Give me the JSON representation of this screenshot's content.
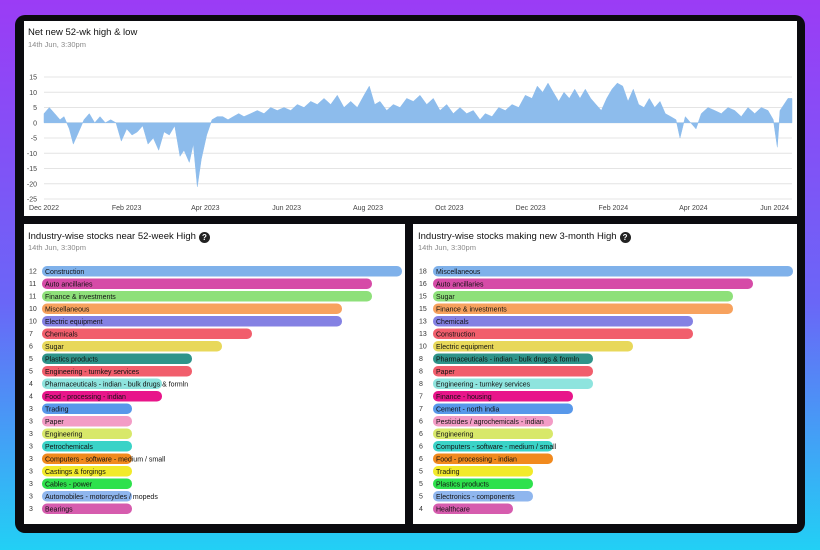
{
  "top": {
    "title": "Net new 52-wk high & low",
    "subtitle": "14th Jun, 3:30pm"
  },
  "left": {
    "title": "Industry-wise stocks near 52-week High",
    "subtitle": "14th Jun, 3:30pm"
  },
  "right": {
    "title": "Industry-wise stocks making new 3-month High",
    "subtitle": "14th Jun, 3:30pm"
  },
  "colors": {
    "area": "#8dbcec",
    "grid": "#e4e4e4"
  },
  "chart_data": [
    {
      "type": "area",
      "title": "Net new 52-wk high & low",
      "ylim": [
        -25,
        15
      ],
      "yticks": [
        15,
        10,
        5,
        0,
        -5,
        -10,
        -15,
        -20,
        -25
      ],
      "xticks": [
        "Dec 2022",
        "Feb 2023",
        "Apr 2023",
        "Jun 2023",
        "Aug 2023",
        "Oct 2023",
        "Dec 2023",
        "Feb 2024",
        "Apr 2024",
        "Jun 2024"
      ],
      "grid": true,
      "x_start": "2022-12-01",
      "x_end": "2024-06-14",
      "points": [
        [
          "2022-12-01",
          3
        ],
        [
          "2022-12-05",
          5
        ],
        [
          "2022-12-09",
          3
        ],
        [
          "2022-12-13",
          1
        ],
        [
          "2022-12-16",
          2
        ],
        [
          "2022-12-20",
          -2
        ],
        [
          "2022-12-23",
          -7
        ],
        [
          "2022-12-27",
          -3
        ],
        [
          "2022-12-31",
          1
        ],
        [
          "2023-01-04",
          3
        ],
        [
          "2023-01-08",
          0
        ],
        [
          "2023-01-12",
          2
        ],
        [
          "2023-01-16",
          0
        ],
        [
          "2023-01-20",
          1
        ],
        [
          "2023-01-24",
          0
        ],
        [
          "2023-01-28",
          -6
        ],
        [
          "2023-02-01",
          -2
        ],
        [
          "2023-02-05",
          -4
        ],
        [
          "2023-02-09",
          -3
        ],
        [
          "2023-02-13",
          -1
        ],
        [
          "2023-02-17",
          -7
        ],
        [
          "2023-02-21",
          -5
        ],
        [
          "2023-02-25",
          -9
        ],
        [
          "2023-03-01",
          -3
        ],
        [
          "2023-03-05",
          -4
        ],
        [
          "2023-03-09",
          -1
        ],
        [
          "2023-03-13",
          -11
        ],
        [
          "2023-03-16",
          -9
        ],
        [
          "2023-03-20",
          -13
        ],
        [
          "2023-03-23",
          -7
        ],
        [
          "2023-03-26",
          -21
        ],
        [
          "2023-03-29",
          -12
        ],
        [
          "2023-04-02",
          -4
        ],
        [
          "2023-04-06",
          1
        ],
        [
          "2023-04-10",
          2
        ],
        [
          "2023-04-14",
          2
        ],
        [
          "2023-04-18",
          1
        ],
        [
          "2023-04-22",
          2
        ],
        [
          "2023-04-26",
          3
        ],
        [
          "2023-04-30",
          2
        ],
        [
          "2023-05-05",
          3
        ],
        [
          "2023-05-10",
          4
        ],
        [
          "2023-05-15",
          3
        ],
        [
          "2023-05-20",
          5
        ],
        [
          "2023-05-25",
          4
        ],
        [
          "2023-05-30",
          5
        ],
        [
          "2023-06-04",
          4
        ],
        [
          "2023-06-09",
          6
        ],
        [
          "2023-06-14",
          5
        ],
        [
          "2023-06-19",
          7
        ],
        [
          "2023-06-24",
          6
        ],
        [
          "2023-06-29",
          8
        ],
        [
          "2023-07-04",
          6
        ],
        [
          "2023-07-09",
          9
        ],
        [
          "2023-07-14",
          5
        ],
        [
          "2023-07-19",
          7
        ],
        [
          "2023-07-24",
          5
        ],
        [
          "2023-07-29",
          9
        ],
        [
          "2023-08-02",
          12
        ],
        [
          "2023-08-06",
          6
        ],
        [
          "2023-08-10",
          7
        ],
        [
          "2023-08-15",
          4
        ],
        [
          "2023-08-20",
          6
        ],
        [
          "2023-08-25",
          5
        ],
        [
          "2023-08-30",
          8
        ],
        [
          "2023-09-04",
          7
        ],
        [
          "2023-09-09",
          9
        ],
        [
          "2023-09-14",
          6
        ],
        [
          "2023-09-19",
          8
        ],
        [
          "2023-09-24",
          4
        ],
        [
          "2023-09-29",
          6
        ],
        [
          "2023-10-04",
          3
        ],
        [
          "2023-10-09",
          5
        ],
        [
          "2023-10-14",
          3
        ],
        [
          "2023-10-19",
          4
        ],
        [
          "2023-10-24",
          1
        ],
        [
          "2023-10-28",
          3
        ],
        [
          "2023-11-02",
          2
        ],
        [
          "2023-11-07",
          5
        ],
        [
          "2023-11-12",
          4
        ],
        [
          "2023-11-17",
          6
        ],
        [
          "2023-11-22",
          5
        ],
        [
          "2023-11-27",
          9
        ],
        [
          "2023-12-02",
          8
        ],
        [
          "2023-12-06",
          12
        ],
        [
          "2023-12-10",
          10
        ],
        [
          "2023-12-14",
          13
        ],
        [
          "2023-12-18",
          10
        ],
        [
          "2023-12-22",
          7
        ],
        [
          "2023-12-26",
          10
        ],
        [
          "2023-12-30",
          8
        ],
        [
          "2024-01-03",
          11
        ],
        [
          "2024-01-07",
          8
        ],
        [
          "2024-01-11",
          11
        ],
        [
          "2024-01-15",
          8
        ],
        [
          "2024-01-19",
          6
        ],
        [
          "2024-01-23",
          4
        ],
        [
          "2024-01-27",
          8
        ],
        [
          "2024-01-31",
          11
        ],
        [
          "2024-02-04",
          13
        ],
        [
          "2024-02-08",
          12
        ],
        [
          "2024-02-12",
          7
        ],
        [
          "2024-02-16",
          11
        ],
        [
          "2024-02-20",
          6
        ],
        [
          "2024-02-24",
          5
        ],
        [
          "2024-02-28",
          8
        ],
        [
          "2024-03-03",
          5
        ],
        [
          "2024-03-07",
          7
        ],
        [
          "2024-03-11",
          3
        ],
        [
          "2024-03-15",
          2
        ],
        [
          "2024-03-19",
          1
        ],
        [
          "2024-03-22",
          -5
        ],
        [
          "2024-03-26",
          2
        ],
        [
          "2024-03-30",
          0
        ],
        [
          "2024-04-03",
          -2
        ],
        [
          "2024-04-07",
          3
        ],
        [
          "2024-04-12",
          5
        ],
        [
          "2024-04-17",
          4
        ],
        [
          "2024-04-22",
          3
        ],
        [
          "2024-04-27",
          5
        ],
        [
          "2024-05-02",
          4
        ],
        [
          "2024-05-07",
          2
        ],
        [
          "2024-05-12",
          5
        ],
        [
          "2024-05-17",
          3
        ],
        [
          "2024-05-22",
          5
        ],
        [
          "2024-05-27",
          4
        ],
        [
          "2024-05-31",
          1
        ],
        [
          "2024-06-03",
          -8
        ],
        [
          "2024-06-05",
          4
        ],
        [
          "2024-06-08",
          6
        ],
        [
          "2024-06-11",
          8
        ],
        [
          "2024-06-14",
          8
        ]
      ]
    },
    {
      "type": "bar",
      "orientation": "horizontal",
      "title": "Industry-wise stocks near 52-week High",
      "xlim": [
        0,
        12
      ],
      "bars": [
        {
          "label": "Construction",
          "value": 12,
          "color": "#7fb1ea"
        },
        {
          "label": "Auto ancillaries",
          "value": 11,
          "color": "#d64ba7"
        },
        {
          "label": "Finance & investments",
          "value": 11,
          "color": "#8ee07a"
        },
        {
          "label": "Miscellaneous",
          "value": 10,
          "color": "#f7a25e"
        },
        {
          "label": "Electric equipment",
          "value": 10,
          "color": "#8481e3"
        },
        {
          "label": "Chemicals",
          "value": 7,
          "color": "#f15e6c"
        },
        {
          "label": "Sugar",
          "value": 6,
          "color": "#e8d85a"
        },
        {
          "label": "Plastics products",
          "value": 5,
          "color": "#2f948a"
        },
        {
          "label": "Engineering - turnkey services",
          "value": 5,
          "color": "#f15e6c"
        },
        {
          "label": "Pharmaceuticals - indian - bulk drugs & formln",
          "value": 4,
          "color": "#8ee4de"
        },
        {
          "label": "Food - processing - indian",
          "value": 4,
          "color": "#e8158a"
        },
        {
          "label": "Trading",
          "value": 3,
          "color": "#5898ea"
        },
        {
          "label": "Paper",
          "value": 3,
          "color": "#f39cc6"
        },
        {
          "label": "Engineering",
          "value": 3,
          "color": "#d8e86a"
        },
        {
          "label": "Petrochemicals",
          "value": 3,
          "color": "#3ad3c7"
        },
        {
          "label": "Computers - software - medium / small",
          "value": 3,
          "color": "#f18a1e"
        },
        {
          "label": "Castings & forgings",
          "value": 3,
          "color": "#f2ea2a"
        },
        {
          "label": "Cables - power",
          "value": 3,
          "color": "#2ee14d"
        },
        {
          "label": "Automobiles - motorcycles / mopeds",
          "value": 3,
          "color": "#8fb6ee"
        },
        {
          "label": "Bearings",
          "value": 3,
          "color": "#d65cae"
        }
      ]
    },
    {
      "type": "bar",
      "orientation": "horizontal",
      "title": "Industry-wise stocks making new 3-month High",
      "xlim": [
        0,
        18
      ],
      "bars": [
        {
          "label": "Miscellaneous",
          "value": 18,
          "color": "#7fb1ea"
        },
        {
          "label": "Auto ancillaries",
          "value": 16,
          "color": "#d64ba7"
        },
        {
          "label": "Sugar",
          "value": 15,
          "color": "#8ee07a"
        },
        {
          "label": "Finance & investments",
          "value": 15,
          "color": "#f7a25e"
        },
        {
          "label": "Chemicals",
          "value": 13,
          "color": "#8481e3"
        },
        {
          "label": "Construction",
          "value": 13,
          "color": "#f15e6c"
        },
        {
          "label": "Electric equipment",
          "value": 10,
          "color": "#e8d85a"
        },
        {
          "label": "Pharmaceuticals - indian - bulk drugs & formln",
          "value": 8,
          "color": "#2f948a"
        },
        {
          "label": "Paper",
          "value": 8,
          "color": "#f15e6c"
        },
        {
          "label": "Engineering - turnkey services",
          "value": 8,
          "color": "#8ee4de"
        },
        {
          "label": "Finance - housing",
          "value": 7,
          "color": "#e8158a"
        },
        {
          "label": "Cement - north india",
          "value": 7,
          "color": "#5898ea"
        },
        {
          "label": "Pesticides / agrochemicals - indian",
          "value": 6,
          "color": "#f39cc6"
        },
        {
          "label": "Engineering",
          "value": 6,
          "color": "#d8e86a"
        },
        {
          "label": "Computers - software - medium / small",
          "value": 6,
          "color": "#3ad3c7"
        },
        {
          "label": "Food - processing - indian",
          "value": 6,
          "color": "#f18a1e"
        },
        {
          "label": "Trading",
          "value": 5,
          "color": "#f2ea2a"
        },
        {
          "label": "Plastics products",
          "value": 5,
          "color": "#2ee14d"
        },
        {
          "label": "Electronics - components",
          "value": 5,
          "color": "#8fb6ee"
        },
        {
          "label": "Healthcare",
          "value": 4,
          "color": "#d65cae"
        }
      ]
    }
  ]
}
